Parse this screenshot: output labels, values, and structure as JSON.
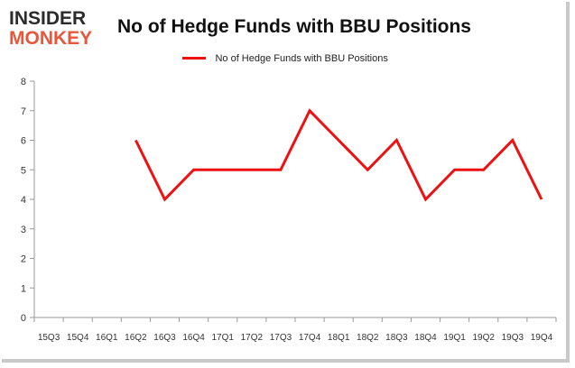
{
  "logo": {
    "line1": "INSIDER",
    "line2": "MONKEY"
  },
  "colors": {
    "series": "#ee1111",
    "logo_accent": "#e8573b",
    "axis": "#999999",
    "frame": "#c9c9c9"
  },
  "chart_data": {
    "type": "line",
    "title": "No of Hedge Funds with BBU Positions",
    "xlabel": "",
    "ylabel": "",
    "legend_placement": "top",
    "grid": false,
    "categories": [
      "15Q3",
      "15Q4",
      "16Q1",
      "16Q2",
      "16Q3",
      "16Q4",
      "17Q1",
      "17Q2",
      "17Q3",
      "17Q4",
      "18Q1",
      "18Q2",
      "18Q3",
      "18Q4",
      "19Q1",
      "19Q2",
      "19Q3",
      "19Q4"
    ],
    "ylim": [
      0,
      8
    ],
    "yticks": [
      0,
      1,
      2,
      3,
      4,
      5,
      6,
      7,
      8
    ],
    "series": [
      {
        "name": "No of Hedge Funds with BBU Positions",
        "values": [
          null,
          null,
          null,
          6,
          4,
          5,
          5,
          5,
          5,
          7,
          6,
          5,
          6,
          4,
          5,
          5,
          6,
          4
        ]
      }
    ]
  }
}
